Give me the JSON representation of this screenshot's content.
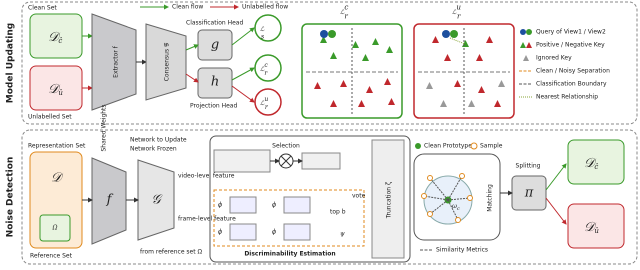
{
  "sections": {
    "top": "Model Updating",
    "bottom": "Noise Detection"
  },
  "flows": {
    "clean": "Clean flow",
    "unlabelled": "Unlabelled flow"
  },
  "model_updating": {
    "clean_set": {
      "label": "Clean Set",
      "symbol": "𝒟",
      "sub": "ĉ"
    },
    "unlabelled_set": {
      "label": "Unlabelled Set",
      "symbol": "𝒟",
      "sub": "û"
    },
    "extractor": "Extractor  f",
    "consensus": "Consensus  𝒢",
    "shared": "Shared Weights",
    "classification_head": {
      "label": "Classification Head",
      "symbol": "g"
    },
    "projection_head": {
      "label": "Projection Head",
      "symbol": "h"
    },
    "losses": [
      {
        "symbol": "ℒ",
        "sub": "s",
        "sup": ""
      },
      {
        "symbol": "ℒ",
        "sub": "r",
        "sup": "c"
      },
      {
        "symbol": "ℒ",
        "sub": "r",
        "sup": "u"
      }
    ],
    "panels": [
      {
        "symbol": "ℒ",
        "sub": "r",
        "sup": "c"
      },
      {
        "symbol": "ℒ",
        "sub": "r",
        "sup": "u"
      }
    ]
  },
  "legend": {
    "query": "Query of View1 / View2",
    "keys": "Positive / Negative Key",
    "ignored": "Ignored Key",
    "separation": "Clean / Noisy Separation",
    "boundary": "Classification Boundary",
    "nearest": "Nearest Relationship"
  },
  "noise_detection": {
    "representation_set": "Representation Set",
    "reference_set": "Reference Set",
    "d": "𝒟",
    "omega": "Ω",
    "f": "f",
    "g": "𝒢",
    "update": "Network to Update",
    "frozen": "Network Frozen",
    "selection": "Selection",
    "video_feature": "video-level feature",
    "frame_feature": "frame-level feature",
    "from_ref": "from reference set Ω",
    "phi": "ϕ",
    "psi": "ψ",
    "topb": "top b",
    "vote": "vote",
    "discriminability": "Discriminability Estimation",
    "truncation": "Truncation ζ",
    "clean_prototype": "Clean Prototype",
    "sample": "Sample",
    "omega_c": "ω",
    "omega_c_sub": "c",
    "matching": "Matching",
    "similarity": "Similarity Metrics",
    "splitting": "Splitting",
    "pi": "π",
    "out_clean": {
      "symbol": "𝒟",
      "sub": "ĉ"
    },
    "out_unl": {
      "symbol": "𝒟",
      "sub": "û"
    }
  }
}
